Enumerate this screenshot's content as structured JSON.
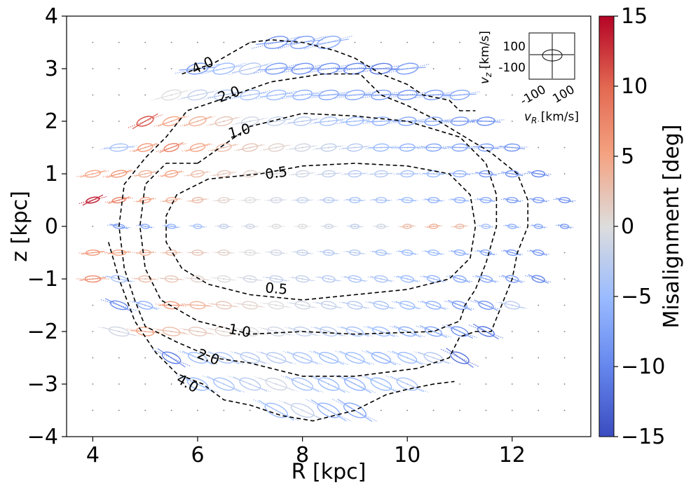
{
  "chart_data": {
    "type": "scatter",
    "description_kind": "velocity ellipses colored by misalignment angle with dashed contour lines",
    "xlabel": "R [kpc]",
    "ylabel": "z [kpc]",
    "xlim": [
      3.5,
      13.5
    ],
    "ylim": [
      -4,
      4
    ],
    "xticks": [
      "4",
      "6",
      "8",
      "10",
      "12"
    ],
    "yticks": [
      "−4",
      "−3",
      "−2",
      "−1",
      "0",
      "1",
      "2",
      "3",
      "4"
    ],
    "grid": false,
    "colorbar": {
      "label": "Misalignment [deg]",
      "range": [
        -15,
        15
      ],
      "ticks": [
        "−15",
        "−10",
        "−5",
        "0",
        "5",
        "10",
        "15"
      ],
      "colormap": "coolwarm",
      "colors": {
        "low": "#3b4cc0",
        "mid": "#dddddd",
        "high": "#b40426"
      }
    },
    "contours": [
      {
        "label": "0.5",
        "points": [
          [
            7.2,
            1.0
          ],
          [
            8.0,
            1.15
          ],
          [
            9.0,
            1.2
          ],
          [
            10.0,
            1.15
          ],
          [
            10.8,
            1.0
          ],
          [
            11.2,
            0.6
          ],
          [
            11.3,
            0.0
          ],
          [
            11.2,
            -0.6
          ],
          [
            10.8,
            -1.0
          ],
          [
            10.0,
            -1.2
          ],
          [
            9.0,
            -1.3
          ],
          [
            8.0,
            -1.4
          ],
          [
            7.0,
            -1.3
          ],
          [
            6.2,
            -1.1
          ],
          [
            5.7,
            -0.8
          ],
          [
            5.4,
            -0.3
          ],
          [
            5.4,
            0.2
          ],
          [
            5.6,
            0.6
          ],
          [
            6.2,
            0.9
          ],
          [
            7.2,
            1.0
          ]
        ]
      },
      {
        "label": "1.0",
        "points": [
          [
            6.0,
            1.2
          ],
          [
            7.0,
            1.9
          ],
          [
            8.0,
            2.15
          ],
          [
            9.0,
            2.1
          ],
          [
            10.0,
            2.0
          ],
          [
            11.0,
            1.7
          ],
          [
            11.5,
            1.2
          ],
          [
            11.7,
            0.6
          ],
          [
            11.7,
            0.0
          ],
          [
            11.5,
            -0.7
          ],
          [
            11.3,
            -1.2
          ],
          [
            11.1,
            -1.5
          ],
          [
            11.0,
            -1.8
          ],
          [
            10.5,
            -2.0
          ],
          [
            9.0,
            -2.05
          ],
          [
            8.0,
            -2.0
          ],
          [
            7.0,
            -2.05
          ],
          [
            6.0,
            -1.8
          ],
          [
            5.3,
            -1.4
          ],
          [
            5.0,
            -0.8
          ],
          [
            4.9,
            0.0
          ],
          [
            5.0,
            0.8
          ],
          [
            5.4,
            1.2
          ],
          [
            6.0,
            1.2
          ]
        ]
      },
      {
        "label": "2.0",
        "points": [
          [
            6.4,
            2.4
          ],
          [
            7.4,
            2.75
          ],
          [
            8.4,
            2.9
          ],
          [
            9.1,
            2.9
          ],
          [
            9.5,
            2.5
          ],
          [
            10.0,
            2.3
          ],
          [
            10.6,
            2.0
          ],
          [
            11.1,
            1.7
          ],
          [
            11.6,
            1.4
          ],
          [
            12.1,
            1.0
          ],
          [
            12.3,
            0.5
          ],
          [
            12.3,
            0.0
          ],
          [
            12.1,
            -0.5
          ],
          [
            12.0,
            -1.0
          ],
          [
            11.8,
            -1.5
          ],
          [
            11.6,
            -2.0
          ],
          [
            11.3,
            -2.0
          ],
          [
            11.0,
            -2.1
          ],
          [
            10.8,
            -2.5
          ],
          [
            10.2,
            -2.7
          ],
          [
            9.0,
            -2.85
          ],
          [
            8.0,
            -2.85
          ],
          [
            7.0,
            -2.6
          ],
          [
            6.3,
            -2.5
          ],
          [
            5.6,
            -2.2
          ],
          [
            5.0,
            -1.9
          ],
          [
            4.8,
            -1.4
          ],
          [
            4.6,
            -0.8
          ],
          [
            4.5,
            0.0
          ],
          [
            4.6,
            0.8
          ],
          [
            5.0,
            1.3
          ],
          [
            5.4,
            1.7
          ],
          [
            5.8,
            2.2
          ],
          [
            6.4,
            2.4
          ]
        ]
      },
      {
        "label": "4.0",
        "points": [
          [
            5.7,
            2.9
          ],
          [
            6.3,
            3.1
          ],
          [
            7.0,
            3.5
          ],
          [
            7.4,
            3.55
          ],
          [
            8.0,
            3.5
          ],
          [
            8.6,
            3.35
          ],
          [
            9.0,
            3.2
          ],
          [
            9.5,
            2.9
          ],
          [
            10.0,
            2.7
          ],
          [
            10.3,
            2.5
          ],
          [
            10.8,
            2.4
          ],
          [
            11.0,
            2.2
          ],
          [
            11.3,
            2.2
          ]
        ]
      },
      {
        "label": "4.0",
        "points": [
          [
            4.3,
            -0.3
          ],
          [
            4.5,
            -1.0
          ],
          [
            4.8,
            -1.8
          ],
          [
            5.2,
            -2.4
          ],
          [
            5.6,
            -2.8
          ],
          [
            6.1,
            -3.0
          ],
          [
            6.5,
            -3.3
          ],
          [
            7.0,
            -3.4
          ],
          [
            7.6,
            -3.6
          ],
          [
            8.2,
            -3.7
          ],
          [
            8.6,
            -3.6
          ],
          [
            9.0,
            -3.5
          ],
          [
            9.2,
            -3.4
          ],
          [
            9.6,
            -3.2
          ],
          [
            10.0,
            -3.1
          ],
          [
            10.5,
            -3.0
          ],
          [
            10.9,
            -2.95
          ]
        ]
      }
    ],
    "contour_labels": [
      {
        "text": "4.0",
        "x": 6.1,
        "y": 3.05,
        "rot": -25
      },
      {
        "text": "2.0",
        "x": 6.6,
        "y": 2.5,
        "rot": -20
      },
      {
        "text": "1.0",
        "x": 6.8,
        "y": 1.8,
        "rot": -15
      },
      {
        "text": "0.5",
        "x": 7.5,
        "y": 1.0,
        "rot": -8
      },
      {
        "text": "0.5",
        "x": 7.5,
        "y": -1.2,
        "rot": 5
      },
      {
        "text": "1.0",
        "x": 6.8,
        "y": -2.0,
        "rot": 10
      },
      {
        "text": "2.0",
        "x": 6.2,
        "y": -2.5,
        "rot": 20
      },
      {
        "text": "4.0",
        "x": 5.8,
        "y": -3.0,
        "rot": 30
      }
    ],
    "inset": {
      "xlabel": "v_R [km/s]",
      "ylabel": "v_z [km/s]",
      "xticks": [
        "-100",
        "100"
      ],
      "yticks": [
        "100",
        "-100"
      ]
    },
    "points": [
      [
        4,
        1,
        5
      ],
      [
        4.5,
        1,
        6
      ],
      [
        5,
        1,
        4
      ],
      [
        5.5,
        1,
        5
      ],
      [
        6,
        1,
        3
      ],
      [
        6.5,
        1,
        2
      ],
      [
        7,
        1,
        1
      ],
      [
        7.5,
        1,
        0
      ],
      [
        8,
        1,
        -1
      ],
      [
        8.5,
        1,
        -2
      ],
      [
        9,
        1,
        -3
      ],
      [
        9.5,
        1,
        -3
      ],
      [
        10,
        1,
        -4
      ],
      [
        10.5,
        1,
        -5
      ],
      [
        11,
        1,
        -6
      ],
      [
        11.5,
        1,
        -8
      ],
      [
        12,
        1,
        -9
      ],
      [
        12.5,
        1,
        -10
      ],
      [
        4,
        0.5,
        14
      ],
      [
        4.5,
        0.5,
        8
      ],
      [
        5,
        0.5,
        5
      ],
      [
        5.5,
        0.5,
        4
      ],
      [
        6,
        0.5,
        3
      ],
      [
        6.5,
        0.5,
        1
      ],
      [
        7,
        0.5,
        0
      ],
      [
        7.5,
        0.5,
        -1
      ],
      [
        8,
        0.5,
        -2
      ],
      [
        8.5,
        0.5,
        -3
      ],
      [
        9,
        0.5,
        -4
      ],
      [
        9.5,
        0.5,
        -4
      ],
      [
        10,
        0.5,
        -5
      ],
      [
        10.5,
        0.5,
        -6
      ],
      [
        11,
        0.5,
        -6
      ],
      [
        11.5,
        0.5,
        -7
      ],
      [
        12,
        0.5,
        -8
      ],
      [
        12.5,
        0.5,
        -8
      ],
      [
        13,
        0.5,
        -9
      ],
      [
        4.5,
        0,
        -8
      ],
      [
        5,
        0,
        -7
      ],
      [
        5.5,
        0,
        -6
      ],
      [
        6,
        0,
        -4
      ],
      [
        6.5,
        0,
        -2
      ],
      [
        7,
        0,
        -1
      ],
      [
        7.5,
        0,
        0
      ],
      [
        8,
        0,
        0
      ],
      [
        8.5,
        0,
        -1
      ],
      [
        9,
        0,
        -2
      ],
      [
        9.5,
        0,
        -1
      ],
      [
        10,
        0,
        3
      ],
      [
        10.5,
        0,
        4
      ],
      [
        11,
        0,
        3
      ],
      [
        11.5,
        0,
        -4
      ],
      [
        12,
        0,
        -6
      ],
      [
        12.5,
        0,
        -7
      ],
      [
        13,
        0,
        -8
      ],
      [
        4,
        -0.5,
        6
      ],
      [
        4.5,
        -0.5,
        5
      ],
      [
        5,
        -0.5,
        4
      ],
      [
        5.5,
        -0.5,
        3
      ],
      [
        6,
        -0.5,
        2
      ],
      [
        6.5,
        -0.5,
        1
      ],
      [
        7,
        -0.5,
        0
      ],
      [
        7.5,
        -0.5,
        -1
      ],
      [
        8,
        -0.5,
        -2
      ],
      [
        8.5,
        -0.5,
        -3
      ],
      [
        9,
        -0.5,
        -3
      ],
      [
        9.5,
        -0.5,
        -4
      ],
      [
        10,
        -0.5,
        -5
      ],
      [
        10.5,
        -0.5,
        -5
      ],
      [
        11,
        -0.5,
        -6
      ],
      [
        11.5,
        -0.5,
        -7
      ],
      [
        12,
        -0.5,
        -8
      ],
      [
        12.5,
        -0.5,
        -8
      ],
      [
        4,
        -1,
        7
      ],
      [
        4.5,
        -1,
        -4
      ],
      [
        5,
        -1,
        3
      ],
      [
        5.5,
        -1,
        2
      ],
      [
        6,
        -1,
        1
      ],
      [
        6.5,
        -1,
        0
      ],
      [
        7,
        -1,
        -1
      ],
      [
        7.5,
        -1,
        -2
      ],
      [
        8,
        -1,
        -2
      ],
      [
        8.5,
        -1,
        -3
      ],
      [
        9,
        -1,
        -4
      ],
      [
        9.5,
        -1,
        -4
      ],
      [
        10,
        -1,
        -5
      ],
      [
        10.5,
        -1,
        -6
      ],
      [
        11,
        -1,
        -7
      ],
      [
        11.5,
        -1,
        -7
      ],
      [
        12,
        -1,
        -8
      ],
      [
        12.5,
        -1,
        -10
      ],
      [
        4.5,
        -1.5,
        -10
      ],
      [
        5,
        -1.5,
        -6
      ],
      [
        5.5,
        -1.5,
        6
      ],
      [
        6,
        -1.5,
        4
      ],
      [
        6.5,
        -1.5,
        2
      ],
      [
        7,
        -1.5,
        1
      ],
      [
        7.5,
        -1.5,
        0
      ],
      [
        8,
        -1.5,
        -1
      ],
      [
        8.5,
        -1.5,
        -2
      ],
      [
        9,
        -1.5,
        -3
      ],
      [
        9.5,
        -1.5,
        -4
      ],
      [
        10,
        -1.5,
        -5
      ],
      [
        10.5,
        -1.5,
        -6
      ],
      [
        11,
        -1.5,
        -8
      ],
      [
        11.5,
        -1.5,
        -9
      ],
      [
        12,
        -1.5,
        -3
      ],
      [
        4.5,
        -2,
        -1
      ],
      [
        5,
        -2,
        5
      ],
      [
        5.5,
        -2,
        3
      ],
      [
        6,
        -2,
        2
      ],
      [
        6.5,
        -2,
        1
      ],
      [
        7,
        -2,
        0
      ],
      [
        7.5,
        -2,
        -1
      ],
      [
        8,
        -2,
        -2
      ],
      [
        8.5,
        -2,
        -3
      ],
      [
        9,
        -2,
        -4
      ],
      [
        9.5,
        -2,
        -5
      ],
      [
        10,
        -2,
        -6
      ],
      [
        10.5,
        -2,
        -7
      ],
      [
        11,
        -2,
        -9
      ],
      [
        11.5,
        -2,
        -11
      ],
      [
        5.5,
        -2.5,
        -11
      ],
      [
        6,
        -2.5,
        -5
      ],
      [
        6.5,
        -2.5,
        -4
      ],
      [
        7,
        -2.5,
        -3
      ],
      [
        7.5,
        -2.5,
        -3
      ],
      [
        8,
        -2.5,
        -4
      ],
      [
        8.5,
        -2.5,
        -5
      ],
      [
        9,
        -2.5,
        -5
      ],
      [
        9.5,
        -2.5,
        -6
      ],
      [
        10,
        -2.5,
        -5
      ],
      [
        10.5,
        -2.5,
        -3
      ],
      [
        11,
        -2.5,
        -12
      ],
      [
        6,
        -3,
        -5
      ],
      [
        6.5,
        -3,
        -4
      ],
      [
        7,
        -3,
        -3
      ],
      [
        7.5,
        -3,
        -1
      ],
      [
        8,
        -3,
        -4
      ],
      [
        8.5,
        -3,
        -5
      ],
      [
        9,
        -3,
        -6
      ],
      [
        9.5,
        -3,
        -5
      ],
      [
        10,
        -3,
        -4
      ],
      [
        7.5,
        -3.5,
        -5
      ],
      [
        8,
        -3.5,
        -2
      ],
      [
        8.5,
        -3.5,
        -6
      ],
      [
        9,
        -3.5,
        -7
      ],
      [
        4.5,
        1.5,
        -4
      ],
      [
        5,
        1.5,
        6
      ],
      [
        5.5,
        1.5,
        8
      ],
      [
        6,
        1.5,
        5
      ],
      [
        6.5,
        1.5,
        3
      ],
      [
        7,
        1.5,
        2
      ],
      [
        7.5,
        1.5,
        1
      ],
      [
        8,
        1.5,
        -1
      ],
      [
        8.5,
        1.5,
        -2
      ],
      [
        9,
        1.5,
        -3
      ],
      [
        9.5,
        1.5,
        -5
      ],
      [
        10,
        1.5,
        -6
      ],
      [
        10.5,
        1.5,
        -7
      ],
      [
        11,
        1.5,
        -7
      ],
      [
        11.5,
        1.5,
        -8
      ],
      [
        12,
        1.5,
        -9
      ],
      [
        5,
        2,
        11
      ],
      [
        5.5,
        2,
        5
      ],
      [
        6,
        2,
        4
      ],
      [
        6.5,
        2,
        2
      ],
      [
        7,
        2,
        -1
      ],
      [
        7.5,
        2,
        -2
      ],
      [
        8,
        2,
        -3
      ],
      [
        8.5,
        2,
        -4
      ],
      [
        9,
        2,
        -5
      ],
      [
        9.5,
        2,
        -6
      ],
      [
        10,
        2,
        -7
      ],
      [
        10.5,
        2,
        -7
      ],
      [
        11,
        2,
        -8
      ],
      [
        11.5,
        2,
        -9
      ],
      [
        5.5,
        2.5,
        0
      ],
      [
        6,
        2.5,
        -2
      ],
      [
        6.5,
        2.5,
        -3
      ],
      [
        7,
        2.5,
        -4
      ],
      [
        7.5,
        2.5,
        -5
      ],
      [
        8,
        2.5,
        -6
      ],
      [
        8.5,
        2.5,
        -7
      ],
      [
        9,
        2.5,
        -7
      ],
      [
        9.5,
        2.5,
        -8
      ],
      [
        10,
        2.5,
        -9
      ],
      [
        10.5,
        2.5,
        -8
      ],
      [
        11,
        2.5,
        -7
      ],
      [
        6,
        3,
        -8
      ],
      [
        6.5,
        3,
        -5
      ],
      [
        7,
        3,
        -3
      ],
      [
        7.5,
        3,
        -8
      ],
      [
        8,
        3,
        -9
      ],
      [
        8.5,
        3,
        -9
      ],
      [
        9,
        3,
        -10
      ],
      [
        9.5,
        3,
        -11
      ],
      [
        10,
        3,
        -8
      ],
      [
        7.5,
        3.5,
        -9
      ],
      [
        8,
        3.5,
        -8
      ],
      [
        8.5,
        3.5,
        -7
      ]
    ]
  }
}
